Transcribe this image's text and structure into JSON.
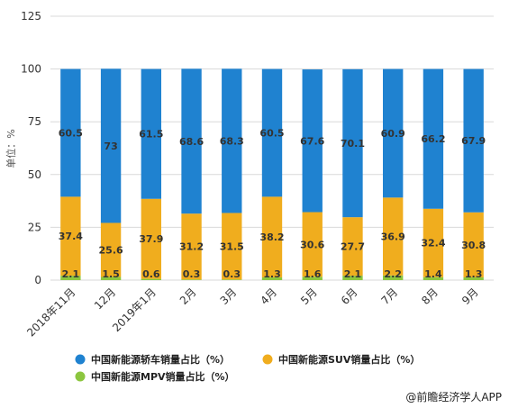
{
  "chart_data": {
    "type": "bar",
    "stacked": true,
    "ylabel": "单位：%",
    "ylim": [
      0,
      125
    ],
    "yticks": [
      0,
      25,
      50,
      75,
      100,
      125
    ],
    "grid": true,
    "legend_position": "bottom",
    "categories": [
      "2018年11月",
      "12月",
      "2019年1月",
      "2月",
      "3月",
      "4月",
      "5月",
      "6月",
      "7月",
      "8月",
      "9月"
    ],
    "series": [
      {
        "name": "中国新能源MPV销量占比（%）",
        "color": "#8cc63f",
        "values": [
          2.1,
          1.5,
          0.6,
          0.3,
          0.3,
          1.3,
          1.6,
          2.1,
          2.2,
          1.4,
          1.3
        ]
      },
      {
        "name": "中国新能源SUV销量占比（%）",
        "color": "#f0ad1e",
        "values": [
          37.4,
          25.6,
          37.9,
          31.2,
          31.5,
          38.2,
          30.6,
          27.7,
          36.9,
          32.4,
          30.8
        ]
      },
      {
        "name": "中国新能源轿车销量占比（%）",
        "color": "#1f82d0",
        "values": [
          60.5,
          73,
          61.5,
          68.6,
          68.3,
          60.5,
          67.6,
          70.1,
          60.9,
          66.2,
          67.9
        ]
      }
    ]
  },
  "legend_items": [
    "中国新能源轿车销量占比（%）",
    "中国新能源SUV销量占比（%）",
    "中国新能源MPV销量占比（%）"
  ],
  "legend_colors": [
    "#1f82d0",
    "#f0ad1e",
    "#8cc63f"
  ],
  "credit": "@前瞻经济学人APP"
}
